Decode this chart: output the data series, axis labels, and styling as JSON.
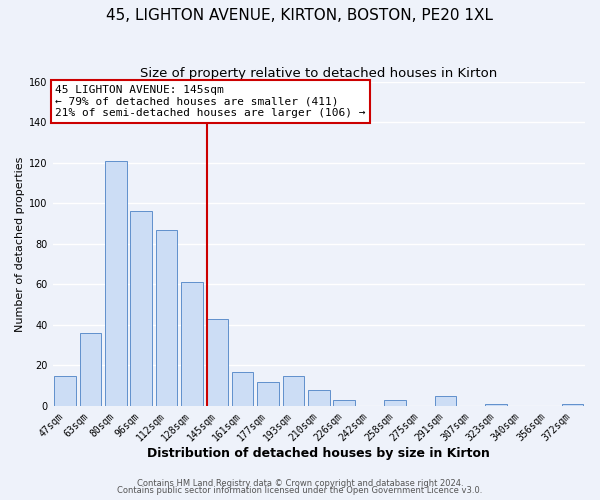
{
  "title": "45, LIGHTON AVENUE, KIRTON, BOSTON, PE20 1XL",
  "subtitle": "Size of property relative to detached houses in Kirton",
  "xlabel": "Distribution of detached houses by size in Kirton",
  "ylabel": "Number of detached properties",
  "bar_labels": [
    "47sqm",
    "63sqm",
    "80sqm",
    "96sqm",
    "112sqm",
    "128sqm",
    "145sqm",
    "161sqm",
    "177sqm",
    "193sqm",
    "210sqm",
    "226sqm",
    "242sqm",
    "258sqm",
    "275sqm",
    "291sqm",
    "307sqm",
    "323sqm",
    "340sqm",
    "356sqm",
    "372sqm"
  ],
  "bar_values": [
    15,
    36,
    121,
    96,
    87,
    61,
    43,
    17,
    12,
    15,
    8,
    3,
    0,
    3,
    0,
    5,
    0,
    1,
    0,
    0,
    1
  ],
  "bar_color": "#ccddf5",
  "bar_edge_color": "#6090cc",
  "highlight_index": 6,
  "highlight_line_color": "#cc0000",
  "annotation_title": "45 LIGHTON AVENUE: 145sqm",
  "annotation_line1": "← 79% of detached houses are smaller (411)",
  "annotation_line2": "21% of semi-detached houses are larger (106) →",
  "annotation_box_edge": "#cc0000",
  "ylim": [
    0,
    160
  ],
  "yticks": [
    0,
    20,
    40,
    60,
    80,
    100,
    120,
    140,
    160
  ],
  "footer1": "Contains HM Land Registry data © Crown copyright and database right 2024.",
  "footer2": "Contains public sector information licensed under the Open Government Licence v3.0.",
  "background_color": "#eef2fa",
  "plot_bg_color": "#eef2fa",
  "grid_color": "#ffffff",
  "title_fontsize": 11,
  "subtitle_fontsize": 9.5,
  "xlabel_fontsize": 9,
  "ylabel_fontsize": 8,
  "tick_fontsize": 7,
  "annotation_fontsize": 8,
  "footer_fontsize": 6
}
